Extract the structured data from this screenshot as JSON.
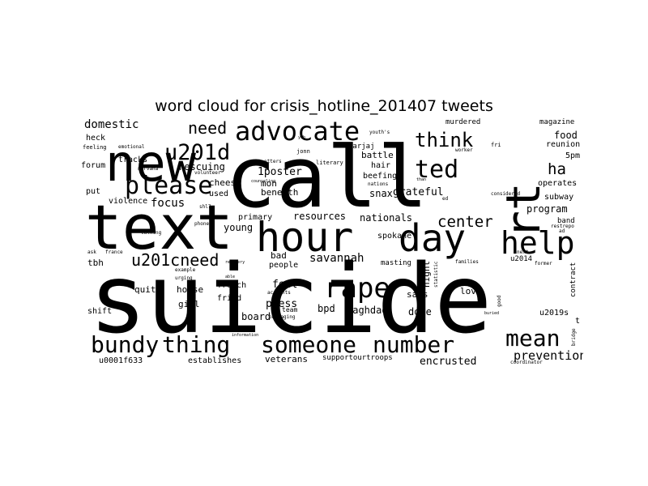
{
  "figure": {
    "title": "word cloud for crisis_hotline_201407 tweets"
  },
  "words": [
    "suicide",
    "call",
    "text",
    "hour",
    "day",
    "new",
    "rt",
    "help",
    "advocate",
    "please",
    "u201d",
    "rape",
    "ted",
    "think",
    "bundy",
    "thing",
    "someone",
    "number",
    "mean",
    "u201cneed",
    "center",
    "prevention",
    "need",
    "ha",
    "domestic",
    "savannah",
    "1poster",
    "focus",
    "grateful",
    "feel",
    "press",
    "board",
    "baghdad",
    "bpd",
    "dope",
    "snax",
    "battle",
    "beefing",
    "hair",
    "says",
    "night",
    "nationals",
    "spokane",
    "program",
    "food",
    "reunion",
    "5pm",
    "subway",
    "magazine",
    "operates",
    "contract",
    "u2019s",
    "t",
    "love",
    "encrusted",
    "veterans",
    "supportourtroops",
    "establishes",
    "u0001f633",
    "quite",
    "house",
    "girl",
    "french",
    "fried",
    "young",
    "primary",
    "resources",
    "bad",
    "people",
    "beneath",
    "mon",
    "cheese",
    "used",
    "rescuing",
    "heck",
    "tracks",
    "forum",
    "put",
    "violence",
    "shift",
    "tbh",
    "murdered",
    "marjaj",
    "u2014",
    "est",
    "team",
    "masting",
    "band",
    "feeling",
    "emotional",
    "nirvana",
    "volunteer",
    "literary",
    "jonn",
    "youth's",
    "worker",
    "nations",
    "considered",
    "former",
    "statistic",
    "families",
    "bridge",
    "coordinator",
    "good",
    "example",
    "urging",
    "phone",
    "talking",
    "france",
    "ask",
    "accounts",
    "packaging",
    "information",
    "recovery",
    "able",
    "otters",
    "counseling",
    "ad",
    "restrepo",
    "next",
    "fri",
    "ed",
    "buried",
    "than",
    "shl7",
    "yeh"
  ]
}
